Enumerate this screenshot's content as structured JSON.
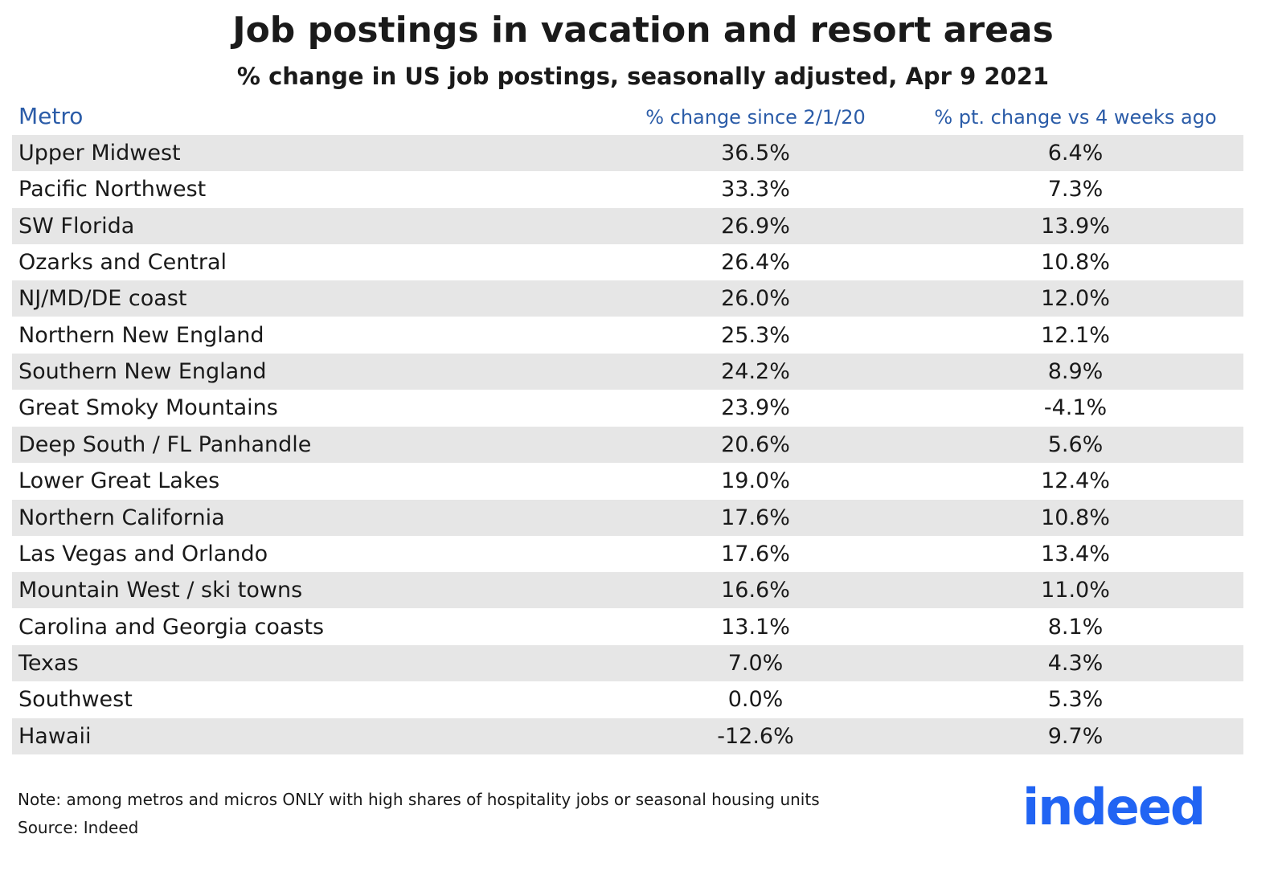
{
  "header": {
    "title": "Job postings in vacation and resort areas",
    "subtitle": "% change in US job postings, seasonally adjusted, Apr 9 2021"
  },
  "table": {
    "columns": [
      "Metro",
      "% change since 2/1/20",
      "% pt. change vs 4 weeks ago"
    ],
    "rows": [
      [
        "Upper Midwest",
        "36.5%",
        "6.4%"
      ],
      [
        "Pacific Northwest",
        "33.3%",
        "7.3%"
      ],
      [
        "SW Florida",
        "26.9%",
        "13.9%"
      ],
      [
        "Ozarks and Central",
        "26.4%",
        "10.8%"
      ],
      [
        "NJ/MD/DE coast",
        "26.0%",
        "12.0%"
      ],
      [
        "Northern New England",
        "25.3%",
        "12.1%"
      ],
      [
        "Southern New England",
        "24.2%",
        "8.9%"
      ],
      [
        "Great Smoky Mountains",
        "23.9%",
        "-4.1%"
      ],
      [
        "Deep South / FL Panhandle",
        "20.6%",
        "5.6%"
      ],
      [
        "Lower Great Lakes",
        "19.0%",
        "12.4%"
      ],
      [
        "Northern California",
        "17.6%",
        "10.8%"
      ],
      [
        "Las Vegas and Orlando",
        "17.6%",
        "13.4%"
      ],
      [
        "Mountain West / ski towns",
        "16.6%",
        "11.0%"
      ],
      [
        "Carolina and Georgia coasts",
        "13.1%",
        "8.1%"
      ],
      [
        "Texas",
        "7.0%",
        "4.3%"
      ],
      [
        "Southwest",
        "0.0%",
        "5.3%"
      ],
      [
        "Hawaii",
        "-12.6%",
        "9.7%"
      ]
    ]
  },
  "footer": {
    "note": "Note: among metros and micros ONLY with high shares of hospitality jobs or seasonal housing units",
    "source": "Source: Indeed",
    "logo": "indeed"
  }
}
